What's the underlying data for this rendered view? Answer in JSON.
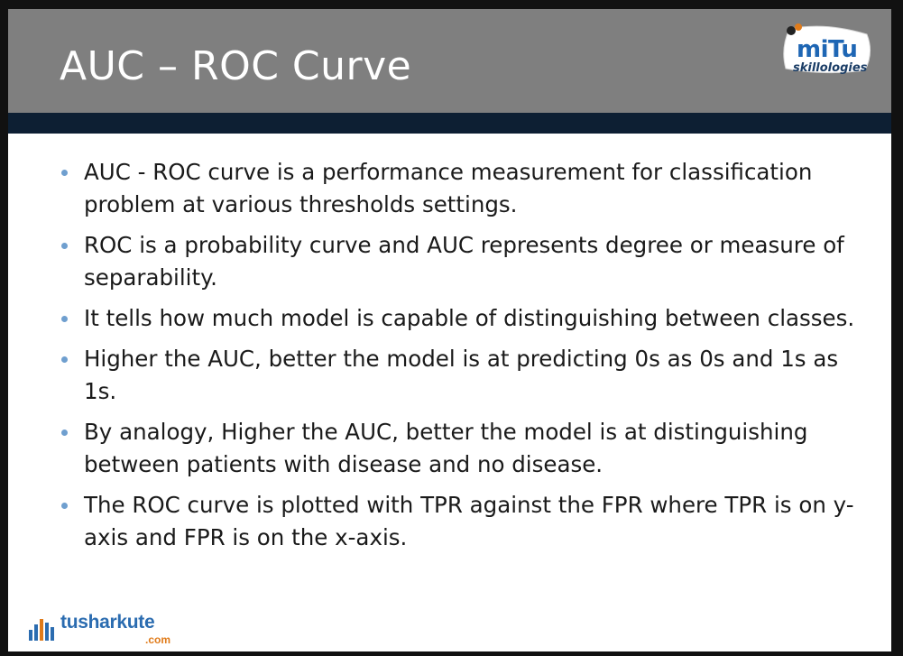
{
  "slide": {
    "title": "AUC – ROC Curve",
    "bullets": [
      "AUC - ROC curve is a performance measurement for classification problem at various thresholds settings.",
      "ROC is a probability curve and AUC represents degree or measure of separability.",
      "It tells how much model is capable of distinguishing between classes.",
      "Higher the AUC, better the model is at predicting 0s as 0s and 1s as 1s.",
      "By analogy, Higher the AUC, better the model is at distinguishing between patients with disease and no disease.",
      "The ROC curve is plotted with TPR against the FPR where TPR is on y-axis and FPR is on the x-axis."
    ]
  },
  "logos": {
    "mitu_main": "miTu",
    "mitu_sub": "skillologies",
    "footer_main": "tusharkute",
    "footer_sub": ".com"
  },
  "colors": {
    "header": "#7f7f7f",
    "header_bar": "#0d1f33",
    "bullet": "#6f9fcf",
    "logo_blue": "#1e66b4",
    "logo_orange": "#e07b1a"
  },
  "icons": {
    "bullet": "bullet-dot-icon",
    "mitu_logo": "mitu-badge-icon",
    "footer_logo": "bar-chart-icon"
  }
}
